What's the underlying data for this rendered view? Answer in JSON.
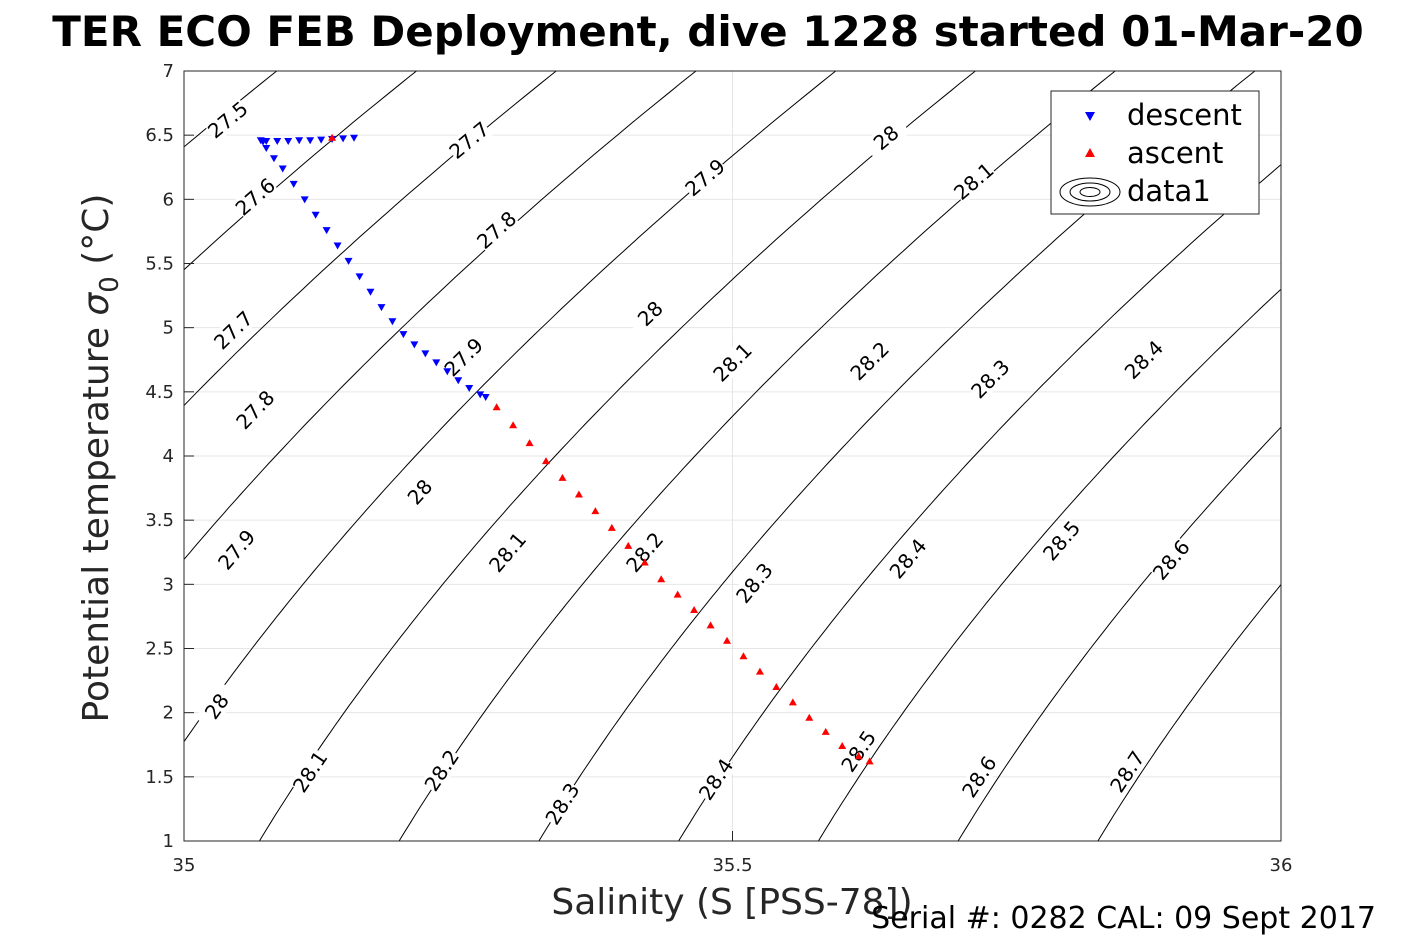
{
  "figure": {
    "title": "TER ECO FEB Deployment, dive 1228 started 01-Mar-20",
    "footer": "Serial #: 0282  CAL: 09 Sept 2017"
  },
  "chart_data": {
    "type": "scatter",
    "xlabel": "Salinity (S [PSS-78])",
    "ylabel_main": "Potential temperature ",
    "ylabel_sigma": "σ",
    "ylabel_sub": "0",
    "ylabel_unit": " (°C)",
    "xlim": [
      35,
      36
    ],
    "ylim": [
      1,
      7
    ],
    "xticks": [
      35,
      35.5,
      36
    ],
    "xtick_labels": [
      "35",
      "35.5",
      "36"
    ],
    "yticks": [
      1,
      1.5,
      2,
      2.5,
      3,
      3.5,
      4,
      4.5,
      5,
      5.5,
      6,
      6.5,
      7
    ],
    "ytick_labels": [
      "1",
      "1.5",
      "2",
      "2.5",
      "3",
      "3.5",
      "4",
      "4.5",
      "5",
      "5.5",
      "6",
      "6.5",
      "7"
    ],
    "grid": true,
    "legend_position": "top-right",
    "contour_levels": [
      27.5,
      27.6,
      27.7,
      27.8,
      27.9,
      28.0,
      28.1,
      28.2,
      28.3,
      28.4,
      28.5,
      28.6,
      28.7
    ],
    "contour_labels": [
      {
        "text": "27.5",
        "s": 35.04,
        "t": 6.62
      },
      {
        "text": "27.7",
        "s": 35.26,
        "t": 6.46
      },
      {
        "text": "28",
        "s": 35.64,
        "t": 6.48
      },
      {
        "text": "27.6",
        "s": 35.065,
        "t": 6.02
      },
      {
        "text": "27.9",
        "s": 35.475,
        "t": 6.17
      },
      {
        "text": "28.1",
        "s": 35.72,
        "t": 6.14
      },
      {
        "text": "27.8",
        "s": 35.285,
        "t": 5.76
      },
      {
        "text": "27.7",
        "s": 35.045,
        "t": 4.98
      },
      {
        "text": "28",
        "s": 35.425,
        "t": 5.11
      },
      {
        "text": "27.9",
        "s": 35.255,
        "t": 4.77
      },
      {
        "text": "28.1",
        "s": 35.5,
        "t": 4.73
      },
      {
        "text": "28.2",
        "s": 35.625,
        "t": 4.74
      },
      {
        "text": "28.3",
        "s": 35.735,
        "t": 4.6
      },
      {
        "text": "28.4",
        "s": 35.875,
        "t": 4.75
      },
      {
        "text": "27.8",
        "s": 35.065,
        "t": 4.36
      },
      {
        "text": "28",
        "s": 35.215,
        "t": 3.72
      },
      {
        "text": "27.9",
        "s": 35.048,
        "t": 3.27
      },
      {
        "text": "28.1",
        "s": 35.295,
        "t": 3.25
      },
      {
        "text": "28.2",
        "s": 35.42,
        "t": 3.25
      },
      {
        "text": "28.3",
        "s": 35.52,
        "t": 3.01
      },
      {
        "text": "28.4",
        "s": 35.66,
        "t": 3.2
      },
      {
        "text": "28.5",
        "s": 35.8,
        "t": 3.34
      },
      {
        "text": "28.6",
        "s": 35.9,
        "t": 3.19
      },
      {
        "text": "28",
        "s": 35.03,
        "t": 2.05
      },
      {
        "text": "28.1",
        "s": 35.115,
        "t": 1.54
      },
      {
        "text": "28.2",
        "s": 35.235,
        "t": 1.55
      },
      {
        "text": "28.3",
        "s": 35.345,
        "t": 1.29
      },
      {
        "text": "28.4",
        "s": 35.485,
        "t": 1.48
      },
      {
        "text": "28.5",
        "s": 35.615,
        "t": 1.7
      },
      {
        "text": "28.6",
        "s": 35.725,
        "t": 1.5
      },
      {
        "text": "28.7",
        "s": 35.86,
        "t": 1.54
      }
    ],
    "series": [
      {
        "name": "descent",
        "color": "#0000ff",
        "marker": "triangle-down",
        "x": [
          35.155,
          35.145,
          35.135,
          35.125,
          35.115,
          35.105,
          35.095,
          35.085,
          35.075,
          35.072,
          35.07,
          35.075,
          35.082,
          35.09,
          35.1,
          35.11,
          35.12,
          35.13,
          35.14,
          35.15,
          35.16,
          35.17,
          35.18,
          35.19,
          35.2,
          35.21,
          35.22,
          35.23,
          35.24,
          35.25,
          35.26,
          35.27,
          35.275
        ],
        "y": [
          6.48,
          6.475,
          6.47,
          6.465,
          6.46,
          6.46,
          6.455,
          6.455,
          6.455,
          6.45,
          6.46,
          6.4,
          6.32,
          6.24,
          6.12,
          6.0,
          5.88,
          5.76,
          5.64,
          5.52,
          5.4,
          5.28,
          5.16,
          5.05,
          4.95,
          4.87,
          4.8,
          4.73,
          4.66,
          4.59,
          4.53,
          4.48,
          4.46
        ]
      },
      {
        "name": "ascent",
        "color": "#ff0000",
        "marker": "triangle-up",
        "x": [
          35.135,
          35.285,
          35.3,
          35.315,
          35.33,
          35.345,
          35.36,
          35.375,
          35.39,
          35.405,
          35.42,
          35.435,
          35.45,
          35.465,
          35.48,
          35.495,
          35.51,
          35.525,
          35.54,
          35.555,
          35.57,
          35.585,
          35.6,
          35.615,
          35.625
        ],
        "y": [
          6.48,
          4.38,
          4.24,
          4.1,
          3.96,
          3.83,
          3.7,
          3.57,
          3.44,
          3.3,
          3.17,
          3.04,
          2.92,
          2.8,
          2.68,
          2.56,
          2.44,
          2.32,
          2.2,
          2.08,
          1.96,
          1.85,
          1.74,
          1.66,
          1.62
        ]
      },
      {
        "name": "data1",
        "color": "#000000",
        "marker": "contour"
      }
    ]
  }
}
